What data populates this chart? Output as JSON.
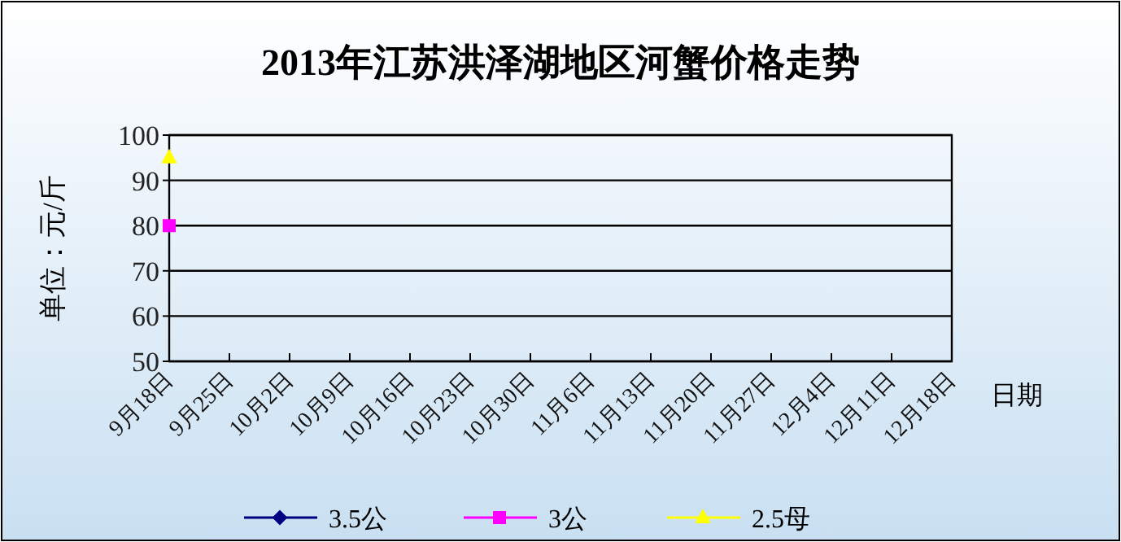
{
  "chart_data": {
    "type": "line",
    "title": "2013年江苏洪泽湖地区河蟹价格走势",
    "ylabel": "单位：元/斤",
    "xlabel": "日期",
    "categories": [
      "9月18日",
      "9月25日",
      "10月2日",
      "10月9日",
      "10月16日",
      "10月23日",
      "10月30日",
      "11月6日",
      "11月13日",
      "11月20日",
      "11月27日",
      "12月4日",
      "12月11日",
      "12月18日"
    ],
    "series": [
      {
        "name": "3.5公",
        "color": "#000080",
        "marker": "diamond",
        "values": [
          null,
          null,
          null,
          null,
          null,
          null,
          null,
          null,
          null,
          null,
          null,
          null,
          null,
          null
        ]
      },
      {
        "name": "3公",
        "color": "#ff00ff",
        "marker": "square",
        "values": [
          80,
          null,
          null,
          null,
          null,
          null,
          null,
          null,
          null,
          null,
          null,
          null,
          null,
          null
        ]
      },
      {
        "name": "2.5母",
        "color": "#ffff00",
        "marker": "triangle",
        "values": [
          95,
          null,
          null,
          null,
          null,
          null,
          null,
          null,
          null,
          null,
          null,
          null,
          null,
          null
        ]
      }
    ],
    "ylim": [
      50,
      100
    ],
    "yticks": [
      50,
      60,
      70,
      80,
      90,
      100
    ],
    "grid": "y",
    "legend": "bottom"
  }
}
